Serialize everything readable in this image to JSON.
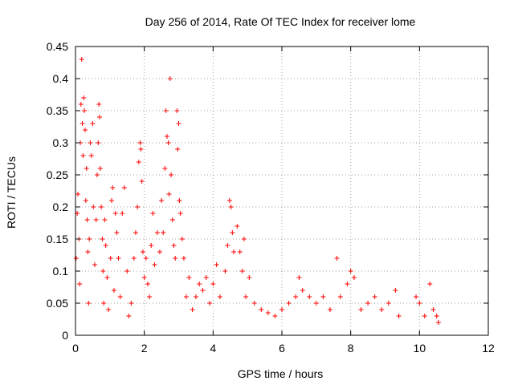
{
  "chart_data": {
    "type": "scatter",
    "title": "Day 256 of 2014, Rate Of TEC Index for receiver lome",
    "xlabel": "GPS time / hours",
    "ylabel": "ROTI / TECUs",
    "xlim": [
      0,
      12
    ],
    "ylim": [
      0,
      0.45
    ],
    "xticks": [
      0,
      2,
      4,
      6,
      8,
      10,
      12
    ],
    "xtick_labels": [
      "0",
      "2",
      "4",
      "6",
      "8",
      "10",
      "12"
    ],
    "yticks": [
      0,
      0.05,
      0.1,
      0.15,
      0.2,
      0.25,
      0.3,
      0.35,
      0.4,
      0.45
    ],
    "ytick_labels": [
      "0",
      "0.05",
      "0.1",
      "0.15",
      "0.2",
      "0.25",
      "0.3",
      "0.35",
      "0.4",
      "0.45"
    ],
    "grid": true,
    "marker": "+",
    "color": "#ff0000",
    "series": [
      {
        "name": "ROTI",
        "points": [
          [
            0.02,
            0.12
          ],
          [
            0.05,
            0.19
          ],
          [
            0.07,
            0.22
          ],
          [
            0.1,
            0.15
          ],
          [
            0.12,
            0.08
          ],
          [
            0.14,
            0.3
          ],
          [
            0.16,
            0.36
          ],
          [
            0.18,
            0.43
          ],
          [
            0.2,
            0.33
          ],
          [
            0.22,
            0.28
          ],
          [
            0.24,
            0.37
          ],
          [
            0.26,
            0.35
          ],
          [
            0.28,
            0.32
          ],
          [
            0.3,
            0.21
          ],
          [
            0.32,
            0.26
          ],
          [
            0.34,
            0.18
          ],
          [
            0.36,
            0.13
          ],
          [
            0.38,
            0.05
          ],
          [
            0.4,
            0.15
          ],
          [
            0.43,
            0.3
          ],
          [
            0.46,
            0.28
          ],
          [
            0.5,
            0.33
          ],
          [
            0.52,
            0.2
          ],
          [
            0.56,
            0.11
          ],
          [
            0.6,
            0.18
          ],
          [
            0.63,
            0.25
          ],
          [
            0.66,
            0.3
          ],
          [
            0.68,
            0.36
          ],
          [
            0.7,
            0.34
          ],
          [
            0.72,
            0.26
          ],
          [
            0.75,
            0.2
          ],
          [
            0.78,
            0.15
          ],
          [
            0.8,
            0.1
          ],
          [
            0.82,
            0.05
          ],
          [
            0.85,
            0.18
          ],
          [
            0.88,
            0.14
          ],
          [
            0.92,
            0.09
          ],
          [
            0.96,
            0.04
          ],
          [
            1.02,
            0.12
          ],
          [
            1.05,
            0.21
          ],
          [
            1.08,
            0.23
          ],
          [
            1.12,
            0.07
          ],
          [
            1.16,
            0.19
          ],
          [
            1.2,
            0.16
          ],
          [
            1.25,
            0.12
          ],
          [
            1.3,
            0.06
          ],
          [
            1.36,
            0.19
          ],
          [
            1.42,
            0.23
          ],
          [
            1.5,
            0.1
          ],
          [
            1.55,
            0.03
          ],
          [
            1.62,
            0.05
          ],
          [
            1.7,
            0.12
          ],
          [
            1.75,
            0.16
          ],
          [
            1.8,
            0.2
          ],
          [
            1.84,
            0.27
          ],
          [
            1.88,
            0.3
          ],
          [
            1.9,
            0.29
          ],
          [
            1.93,
            0.24
          ],
          [
            1.96,
            0.13
          ],
          [
            2,
            0.09
          ],
          [
            2.05,
            0.12
          ],
          [
            2.1,
            0.08
          ],
          [
            2.15,
            0.06
          ],
          [
            2.2,
            0.14
          ],
          [
            2.25,
            0.19
          ],
          [
            2.3,
            0.11
          ],
          [
            2.38,
            0.16
          ],
          [
            2.45,
            0.13
          ],
          [
            2.5,
            0.21
          ],
          [
            2.55,
            0.16
          ],
          [
            2.6,
            0.26
          ],
          [
            2.63,
            0.35
          ],
          [
            2.66,
            0.31
          ],
          [
            2.7,
            0.3
          ],
          [
            2.72,
            0.22
          ],
          [
            2.75,
            0.4
          ],
          [
            2.78,
            0.25
          ],
          [
            2.82,
            0.18
          ],
          [
            2.86,
            0.14
          ],
          [
            2.9,
            0.12
          ],
          [
            2.95,
            0.35
          ],
          [
            2.97,
            0.29
          ],
          [
            3,
            0.33
          ],
          [
            3.02,
            0.21
          ],
          [
            3.05,
            0.19
          ],
          [
            3.1,
            0.15
          ],
          [
            3.15,
            0.12
          ],
          [
            3.22,
            0.06
          ],
          [
            3.3,
            0.09
          ],
          [
            3.4,
            0.04
          ],
          [
            3.5,
            0.06
          ],
          [
            3.6,
            0.08
          ],
          [
            3.7,
            0.07
          ],
          [
            3.8,
            0.09
          ],
          [
            3.9,
            0.05
          ],
          [
            4,
            0.08
          ],
          [
            4.1,
            0.11
          ],
          [
            4.2,
            0.06
          ],
          [
            4.35,
            0.1
          ],
          [
            4.42,
            0.14
          ],
          [
            4.48,
            0.21
          ],
          [
            4.52,
            0.2
          ],
          [
            4.56,
            0.16
          ],
          [
            4.6,
            0.13
          ],
          [
            4.7,
            0.17
          ],
          [
            4.78,
            0.13
          ],
          [
            4.85,
            0.1
          ],
          [
            4.9,
            0.15
          ],
          [
            4.95,
            0.06
          ],
          [
            5.05,
            0.09
          ],
          [
            5.2,
            0.05
          ],
          [
            5.4,
            0.04
          ],
          [
            5.6,
            0.035
          ],
          [
            5.8,
            0.03
          ],
          [
            6,
            0.04
          ],
          [
            6.2,
            0.05
          ],
          [
            6.4,
            0.06
          ],
          [
            6.5,
            0.09
          ],
          [
            6.6,
            0.07
          ],
          [
            6.8,
            0.06
          ],
          [
            7,
            0.05
          ],
          [
            7.2,
            0.06
          ],
          [
            7.4,
            0.04
          ],
          [
            7.6,
            0.12
          ],
          [
            7.7,
            0.06
          ],
          [
            7.9,
            0.08
          ],
          [
            8,
            0.1
          ],
          [
            8.1,
            0.09
          ],
          [
            8.3,
            0.04
          ],
          [
            8.5,
            0.05
          ],
          [
            8.7,
            0.06
          ],
          [
            8.9,
            0.04
          ],
          [
            9.1,
            0.05
          ],
          [
            9.3,
            0.07
          ],
          [
            9.4,
            0.03
          ],
          [
            9.9,
            0.06
          ],
          [
            10,
            0.05
          ],
          [
            10.15,
            0.03
          ],
          [
            10.3,
            0.08
          ],
          [
            10.4,
            0.04
          ],
          [
            10.5,
            0.03
          ],
          [
            10.55,
            0.02
          ]
        ]
      }
    ]
  }
}
